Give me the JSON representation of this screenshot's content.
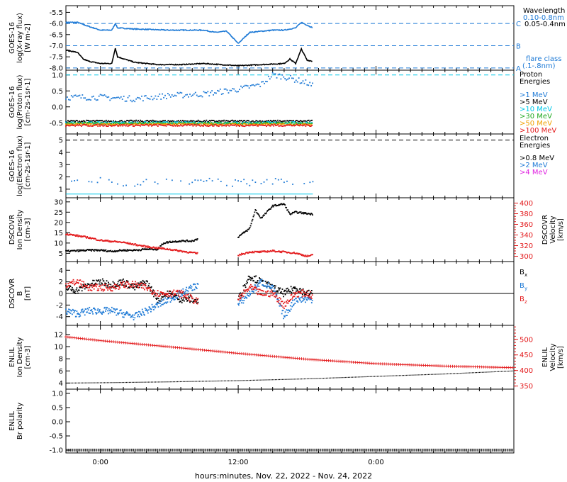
{
  "figure": {
    "xlabel": "hours:minutes, Nov. 22, 2022 - Nov. 24, 2022",
    "x_ticks": [
      "0:00",
      "12:00",
      "0:00"
    ]
  },
  "colors": {
    "black": "#000000",
    "blue": "#1e7ad6",
    "cyan": "#00c8e8",
    "green": "#22aa22",
    "orange": "#f0a000",
    "red": "#e31a1c",
    "magenta": "#e020e0"
  },
  "chart_data": [
    {
      "type": "line",
      "id": "xray",
      "ylabel": [
        "GOES-16",
        "log(X-ray flux)",
        "[W m-2]"
      ],
      "ylim": [
        -8.1,
        -5.2
      ],
      "yticks": [
        "-5.5",
        "-6.0",
        "-6.5",
        "-7.0",
        "-7.5",
        "-8.0"
      ],
      "x_range_hours": [
        -3,
        36
      ],
      "data_extent_hours": [
        -3,
        18.5
      ],
      "legend_title": "Wavelength",
      "series": [
        {
          "name": "0.10-0.8nm",
          "color": "blue",
          "x": [
            -3,
            -2,
            -1.2,
            0,
            1,
            1.3,
            1.5,
            3,
            6,
            9,
            10,
            11,
            12,
            13,
            14,
            15,
            16,
            17,
            17.5,
            18.5
          ],
          "y": [
            -5.95,
            -5.95,
            -6.1,
            -6.3,
            -6.3,
            -6.0,
            -6.2,
            -6.25,
            -6.3,
            -6.3,
            -6.4,
            -6.35,
            -6.9,
            -6.4,
            -6.35,
            -6.3,
            -6.3,
            -6.2,
            -5.95,
            -6.2
          ]
        },
        {
          "name": "0.05-0.4nm",
          "color": "black",
          "x": [
            -3,
            -2,
            -1.5,
            -1,
            0,
            1,
            1.3,
            1.5,
            3,
            5,
            7,
            9,
            12,
            14,
            16,
            16.5,
            17,
            17.5,
            18,
            18.5
          ],
          "y": [
            -7.2,
            -7.3,
            -7.6,
            -7.7,
            -7.8,
            -7.8,
            -7.1,
            -7.5,
            -7.75,
            -7.85,
            -7.85,
            -7.8,
            -7.9,
            -7.85,
            -7.8,
            -7.6,
            -7.8,
            -7.15,
            -7.65,
            -7.7
          ]
        }
      ],
      "flare_classes": [
        {
          "label": "C",
          "y": -6.0
        },
        {
          "label": "B",
          "y": -7.0
        },
        {
          "label": "A",
          "y": -8.0
        }
      ],
      "flare_note": [
        "flare class",
        "(.1-.8nm)"
      ]
    },
    {
      "type": "scatter",
      "id": "proton",
      "ylabel": [
        "GOES-16",
        "log(Proton flux)",
        "[cm-2s-1sr-1]"
      ],
      "ylim": [
        -0.85,
        1.15
      ],
      "yticks": [
        "1.0",
        "0.5",
        "0.0",
        "-0.5"
      ],
      "reference_line": 1.0,
      "legend_title": [
        "Proton",
        "Energies"
      ],
      "series": [
        {
          "name": ">1 MeV",
          "color": "blue",
          "x": [
            -3,
            0,
            3,
            6,
            9,
            12,
            14,
            15,
            16,
            17,
            18,
            18.5
          ],
          "y": [
            0.3,
            0.3,
            0.25,
            0.35,
            0.4,
            0.55,
            0.7,
            1.0,
            0.95,
            0.85,
            0.75,
            0.65
          ]
        },
        {
          "name": ">5 MeV",
          "color": "black",
          "x": [
            -3,
            18.5
          ],
          "y": [
            -0.45,
            -0.45
          ]
        },
        {
          "name": ">10 MeV",
          "color": "cyan",
          "x": [
            -3,
            18.5
          ],
          "y": [
            -0.5,
            -0.5
          ]
        },
        {
          "name": ">30 MeV",
          "color": "green",
          "x": [
            -3,
            18.5
          ],
          "y": [
            -0.52,
            -0.52
          ]
        },
        {
          "name": ">50 MeV",
          "color": "orange",
          "x": [
            -3,
            18.5
          ],
          "y": [
            -0.55,
            -0.55
          ]
        },
        {
          "name": ">100 MeV",
          "color": "red",
          "x": [
            -3,
            18.5
          ],
          "y": [
            -0.58,
            -0.58
          ]
        }
      ]
    },
    {
      "type": "scatter",
      "id": "electron",
      "ylabel": [
        "GOES-16",
        "log(Electron flux)",
        "[cm-2s-1sr-1]"
      ],
      "ylim": [
        0.3,
        5.5
      ],
      "yticks": [
        "5",
        "4",
        "3",
        "2",
        "1"
      ],
      "reference_line": 5.0,
      "legend_title": [
        "Electron",
        "Energies"
      ],
      "series": [
        {
          "name": ">0.8 MeV",
          "color": "black",
          "x": [],
          "y": []
        },
        {
          "name": ">2 MeV",
          "color": "blue",
          "x": [
            -3,
            0,
            3,
            6,
            9,
            12,
            15,
            18.5
          ],
          "y": [
            1.6,
            1.7,
            1.5,
            1.6,
            1.6,
            1.5,
            1.7,
            1.6
          ]
        },
        {
          "name": ">4 MeV",
          "color": "magenta",
          "x": [],
          "y": []
        }
      ],
      "floor_line": 0.6
    },
    {
      "type": "line",
      "id": "dscovr_plasma",
      "ylabel": [
        "DSCOVR",
        "Ion Density",
        "[cm-3]"
      ],
      "ylim": [
        1,
        32
      ],
      "yticks": [
        "30",
        "25",
        "20",
        "15",
        "10",
        "5"
      ],
      "y2label": [
        "DSCOVR",
        "Velocity",
        "[km/s]"
      ],
      "y2lim": [
        290,
        410
      ],
      "y2ticks": [
        "400",
        "380",
        "360",
        "340",
        "320",
        "300"
      ],
      "series": [
        {
          "name": "density",
          "axis": "left",
          "color": "black",
          "x": [
            -3,
            -1,
            0,
            1,
            2,
            3,
            4,
            5,
            5.5,
            6,
            7,
            8,
            8.5,
            12,
            13,
            13.5,
            14,
            15,
            16,
            16.5,
            17,
            18.5
          ],
          "y": [
            6,
            6.5,
            6.5,
            6,
            6.5,
            6.5,
            7,
            7,
            10,
            10.5,
            11,
            11,
            12,
            13,
            17,
            26,
            22,
            28,
            29,
            24,
            25,
            24
          ]
        },
        {
          "name": "velocity",
          "axis": "right",
          "color": "red",
          "x": [
            -3,
            -1,
            0,
            1,
            2,
            3,
            4,
            6,
            8.5,
            12,
            13,
            14,
            15,
            16,
            17,
            18,
            18.5
          ],
          "y": [
            342,
            335,
            330,
            328,
            326,
            322,
            318,
            313,
            305,
            302,
            308,
            308,
            310,
            308,
            306,
            300,
            302
          ]
        }
      ]
    },
    {
      "type": "line",
      "id": "dscovr_mag",
      "ylabel": [
        "DSCOVR",
        "B",
        "[nT]"
      ],
      "ylim": [
        -5.5,
        5.5
      ],
      "yticks": [
        "4",
        "2",
        "0",
        "-2",
        "-4"
      ],
      "zero_line": true,
      "series": [
        {
          "name": "Bx",
          "color": "black",
          "x": [
            -3,
            -2,
            -1,
            0,
            1,
            2,
            3,
            4,
            5,
            6,
            7,
            8,
            8.5,
            12,
            13,
            14,
            15,
            16,
            17,
            18,
            18.5
          ],
          "y": [
            1,
            0.5,
            1.5,
            2,
            1.5,
            2,
            1,
            2,
            -1,
            0,
            -1,
            -1,
            -1.5,
            -1,
            3,
            2,
            1,
            0,
            1,
            0,
            0
          ]
        },
        {
          "name": "By",
          "color": "blue",
          "x": [
            -3,
            -2,
            -1,
            0,
            1,
            2,
            3,
            4,
            5,
            6,
            7,
            8,
            8.5,
            12,
            13,
            14,
            15,
            16,
            17,
            18,
            18.5
          ],
          "y": [
            -3,
            -3.5,
            -3,
            -3,
            -3,
            -3.5,
            -4,
            -3,
            -2,
            -1,
            0,
            1,
            1.5,
            -2,
            0,
            2,
            1,
            -4,
            -1,
            -1,
            -1
          ]
        },
        {
          "name": "Bz",
          "color": "red",
          "x": [
            -3,
            -2,
            -1,
            0,
            1,
            2,
            3,
            4,
            5,
            6,
            7,
            8,
            8.5,
            12,
            13,
            14,
            15,
            16,
            17,
            18,
            18.5
          ],
          "y": [
            1.5,
            2,
            1,
            1,
            1,
            1.5,
            1.5,
            1,
            0,
            0,
            0,
            -1,
            -1.5,
            -1,
            1,
            0,
            0,
            -2,
            0,
            0,
            -0.5
          ]
        }
      ],
      "legend": [
        "B",
        "B",
        "B"
      ],
      "legend_subscripts": [
        "x",
        "y",
        "z"
      ]
    },
    {
      "type": "line",
      "id": "enlil_plasma",
      "ylabel": [
        "ENLIL",
        "Ion Density",
        "[cm-3]"
      ],
      "ylim": [
        3,
        13.5
      ],
      "yticks": [
        "12",
        "10",
        "8",
        "6",
        "4"
      ],
      "y2label": [
        "ENLIL",
        "Velocity",
        "[km/s]"
      ],
      "y2lim": [
        340,
        545
      ],
      "y2ticks": [
        "500",
        "450",
        "400",
        "350"
      ],
      "series": [
        {
          "name": "velocity",
          "axis": "right",
          "color": "red",
          "x": [
            -3,
            0,
            6,
            12,
            18,
            24,
            30,
            36
          ],
          "y": [
            508,
            496,
            476,
            455,
            436,
            422,
            414,
            409
          ]
        },
        {
          "name": "density",
          "axis": "left",
          "color": "black",
          "x": [
            -3,
            0,
            6,
            12,
            18,
            24,
            30,
            36
          ],
          "y": [
            4.0,
            4.05,
            4.2,
            4.4,
            4.7,
            5.1,
            5.5,
            6.0
          ]
        }
      ]
    },
    {
      "type": "line",
      "id": "enlil_polarity",
      "ylabel": [
        "ENLIL",
        "Br polarity"
      ],
      "ylabel_subscript": "r",
      "ylim": [
        -1.1,
        1.15
      ],
      "yticks": [
        "1.0",
        "0.5",
        "0.0",
        "-0.5",
        "-1.0"
      ],
      "series": [
        {
          "name": "polarity",
          "color": "black",
          "x": [
            -3,
            36
          ],
          "y": [
            -1,
            -1
          ]
        }
      ]
    }
  ]
}
